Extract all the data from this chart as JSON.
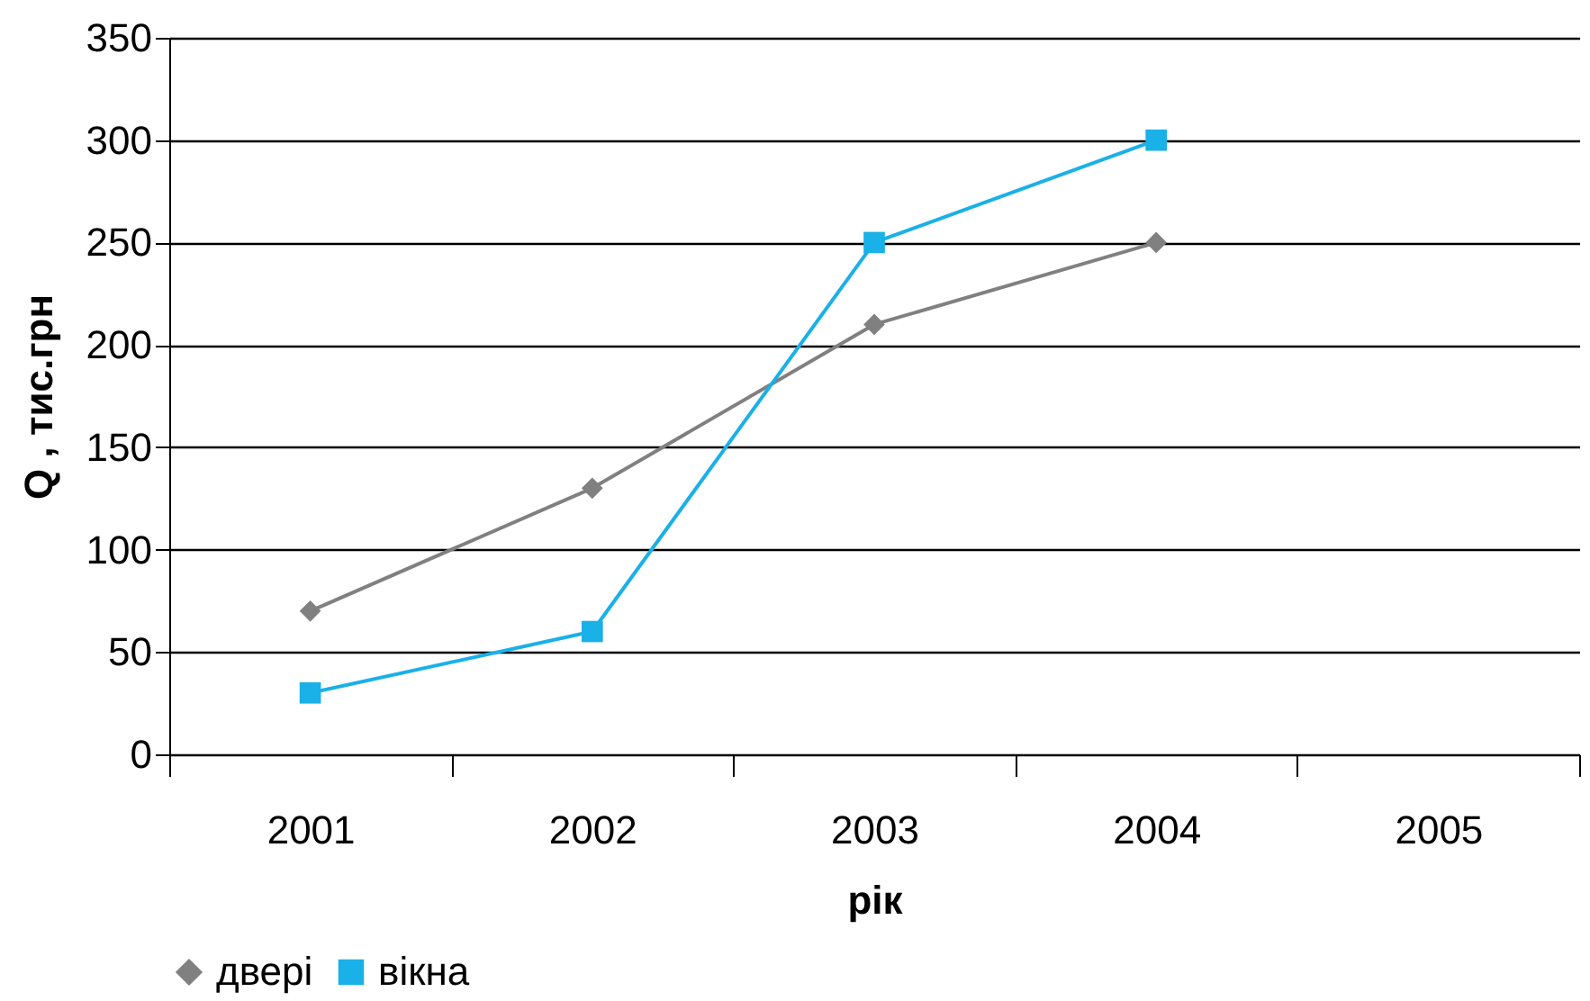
{
  "chart_data": {
    "type": "line",
    "xlabel": "рік",
    "ylabel": "Q , тис.грн",
    "categories": [
      "2001",
      "2002",
      "2003",
      "2004",
      "2005"
    ],
    "series": [
      {
        "name": "двері",
        "color": "#808080",
        "marker": "diamond",
        "values": [
          70,
          130,
          210,
          250,
          null
        ]
      },
      {
        "name": "вікна",
        "color": "#1ab0e8",
        "marker": "square",
        "values": [
          30,
          60,
          250,
          300,
          null
        ]
      }
    ],
    "ylim": [
      0,
      350
    ],
    "yticks": [
      0,
      50,
      100,
      150,
      200,
      250,
      300,
      350
    ],
    "grid": "y",
    "legend": "bottom",
    "line_style": "solid"
  }
}
